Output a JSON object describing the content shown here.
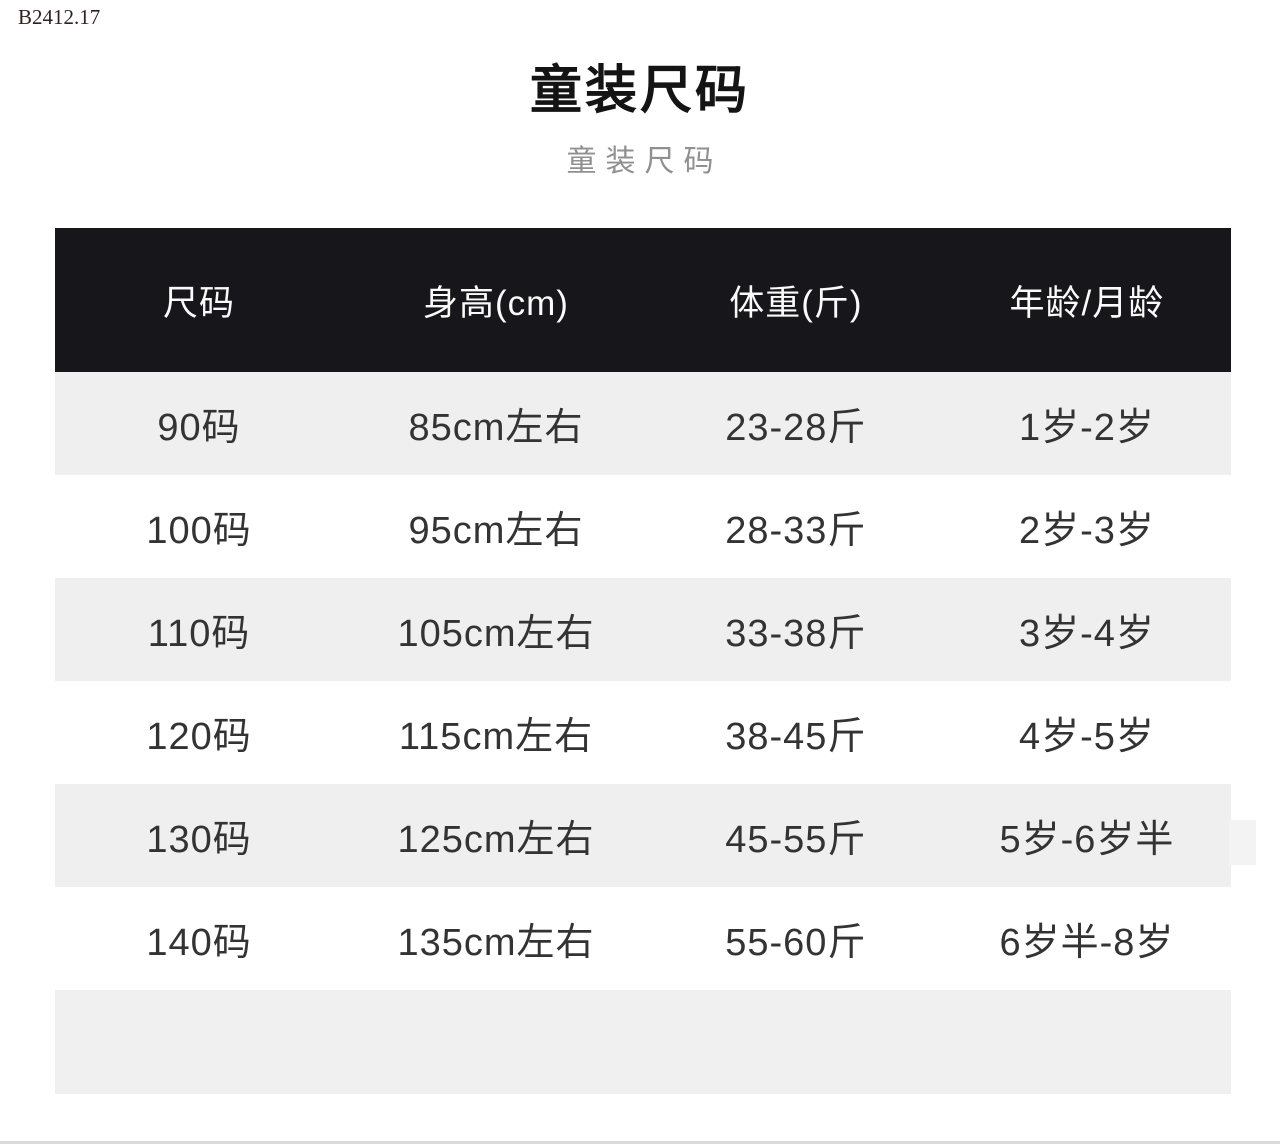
{
  "colors": {
    "header_bg": "#17171b",
    "header_text": "#fafafa",
    "row_bg": "#ffffff",
    "row_alt_bg": "#f0eff0",
    "footer_bg": "#f1f0f1",
    "text": "#333333",
    "title_color": "#141414",
    "subtitle_color": "#909090",
    "id_color": "#331f1f",
    "bottom_line": "#dadada"
  },
  "page": {
    "id_label": "B2412.17",
    "title": "童装尺码",
    "subtitle": "童装尺码"
  },
  "table": {
    "columns": [
      "尺码",
      "身高(cm)",
      "体重(斤)",
      "年龄/月龄"
    ],
    "rows": [
      [
        "90码",
        "85cm左右",
        "23-28斤",
        "1岁-2岁"
      ],
      [
        "100码",
        "95cm左右",
        "28-33斤",
        "2岁-3岁"
      ],
      [
        "110码",
        "105cm左右",
        "33-38斤",
        "3岁-4岁"
      ],
      [
        "120码",
        "115cm左右",
        "38-45斤",
        "4岁-5岁"
      ],
      [
        "130码",
        "125cm左右",
        "45-55斤",
        "5岁-6岁半"
      ],
      [
        "140码",
        "135cm左右",
        "55-60斤",
        "6岁半-8岁"
      ]
    ]
  }
}
